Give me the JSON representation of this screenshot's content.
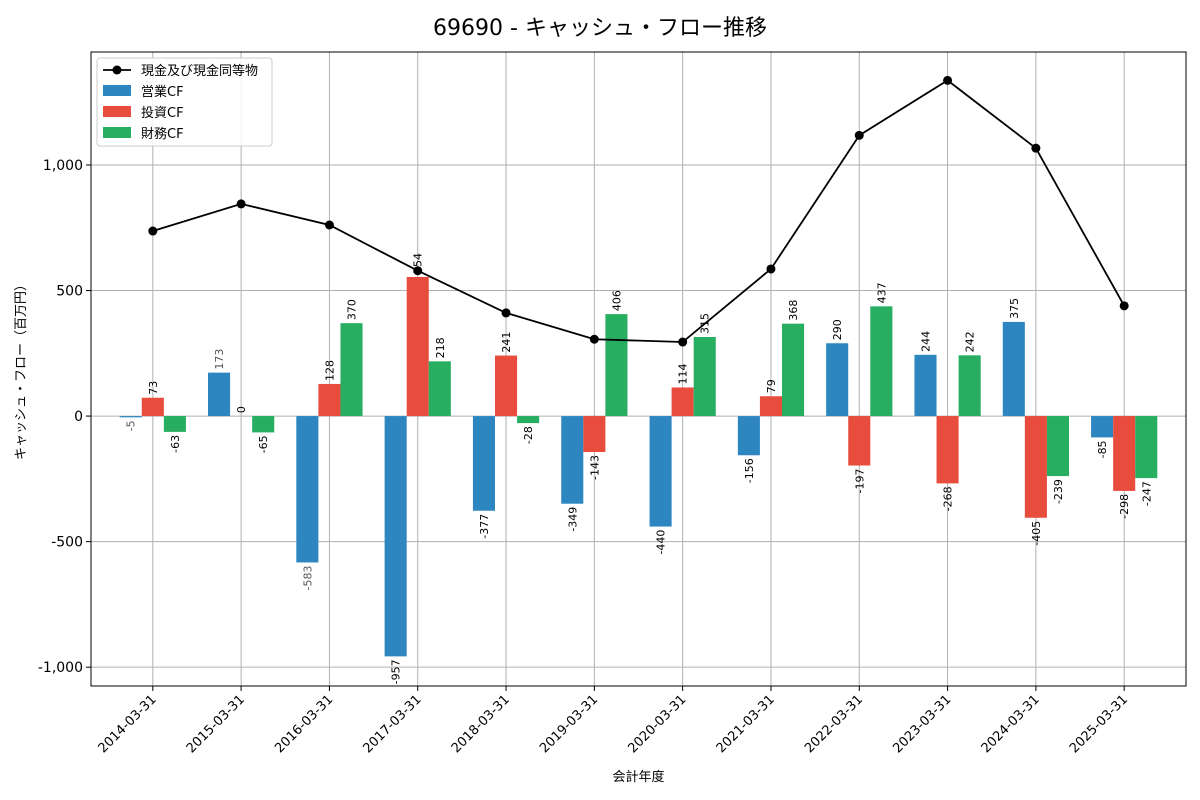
{
  "chart_data": {
    "type": "bar",
    "title": "69690 - キャッシュ・フロー推移",
    "xlabel": "会計年度",
    "ylabel": "キャッシュ・フロー（百万円）",
    "ylim": [
      -1075,
      1450
    ],
    "yticks": [
      -1000,
      -500,
      0,
      500,
      1000
    ],
    "ytick_labels": [
      "-1,000",
      "-500",
      "0",
      "500",
      "1,000"
    ],
    "grid": true,
    "legend_position": "top-left",
    "categories": [
      "2014-03-31",
      "2015-03-31",
      "2016-03-31",
      "2017-03-31",
      "2018-03-31",
      "2019-03-31",
      "2020-03-31",
      "2021-03-31",
      "2022-03-31",
      "2023-03-31",
      "2024-03-31",
      "2025-03-31"
    ],
    "series": [
      {
        "name": "営業CF",
        "kind": "bar",
        "color": "#2e86c1",
        "values": [
          -5,
          173,
          -583,
          -957,
          -377,
          -349,
          -440,
          -156,
          290,
          244,
          375,
          -85
        ]
      },
      {
        "name": "投資CF",
        "kind": "bar",
        "color": "#e74c3c",
        "values": [
          73,
          0,
          128,
          554,
          241,
          -143,
          114,
          79,
          -197,
          -268,
          -405,
          -298
        ]
      },
      {
        "name": "財務CF",
        "kind": "bar",
        "color": "#27ae60",
        "values": [
          -63,
          -65,
          370,
          218,
          -28,
          406,
          315,
          368,
          437,
          242,
          -239,
          -247
        ]
      },
      {
        "name": "現金及び現金同等物",
        "kind": "line",
        "color": "#000000",
        "values": [
          737,
          845,
          761,
          579,
          411,
          306,
          295,
          586,
          1118,
          1337,
          1067,
          439
        ]
      }
    ]
  }
}
